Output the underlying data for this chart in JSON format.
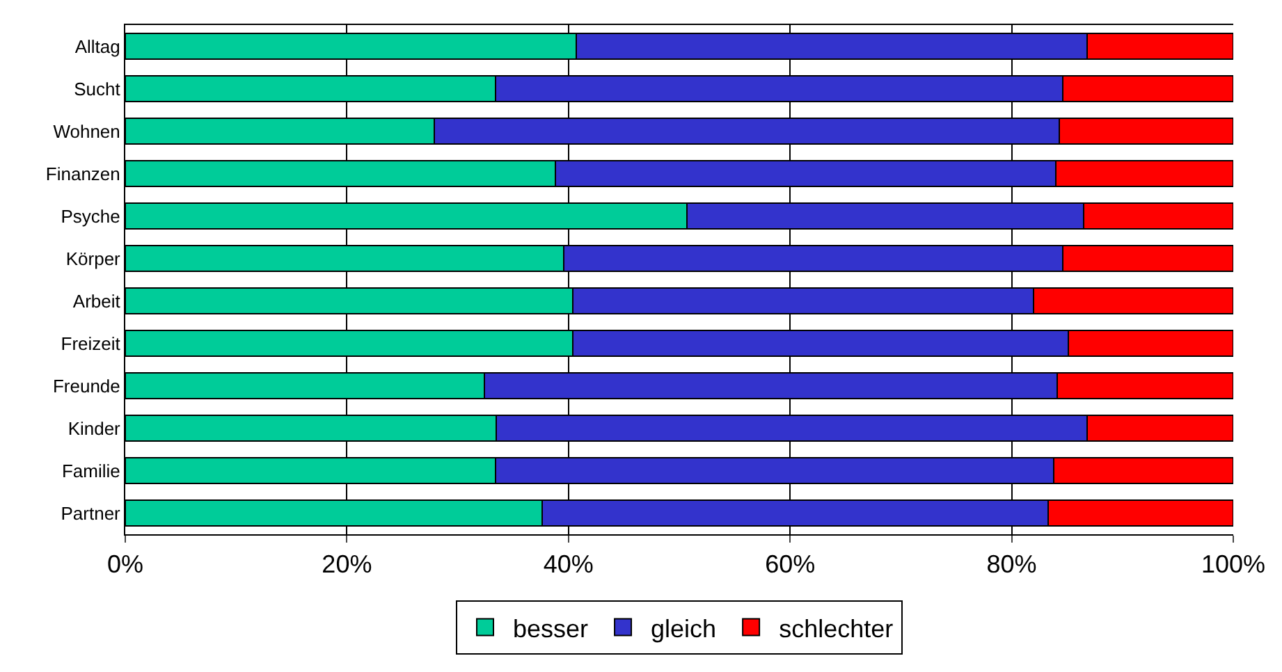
{
  "chart_data": {
    "type": "bar",
    "orientation": "horizontal",
    "stacked": true,
    "categories": [
      "Alltag",
      "Sucht",
      "Wohnen",
      "Finanzen",
      "Psyche",
      "Körper",
      "Arbeit",
      "Freizeit",
      "Freunde",
      "Kinder",
      "Familie",
      "Partner"
    ],
    "series": [
      {
        "name": "besser",
        "color": "#00cc99",
        "values": [
          40.7,
          33.4,
          27.9,
          38.8,
          50.7,
          39.6,
          40.4,
          40.4,
          32.4,
          33.5,
          33.4,
          37.6
        ]
      },
      {
        "name": "gleich",
        "color": "#3333cc",
        "values": [
          46.1,
          51.2,
          56.4,
          45.2,
          35.8,
          45.0,
          41.6,
          44.7,
          51.7,
          53.3,
          50.4,
          45.7
        ]
      },
      {
        "name": "schlechter",
        "color": "#ff0000",
        "values": [
          13.2,
          15.4,
          15.7,
          16.0,
          13.5,
          15.4,
          18.0,
          14.9,
          15.9,
          13.2,
          16.2,
          16.7
        ]
      }
    ],
    "xlim": [
      0,
      100
    ],
    "xticks": [
      {
        "value": 0,
        "label": "0%"
      },
      {
        "value": 20,
        "label": "20%"
      },
      {
        "value": 40,
        "label": "40%"
      },
      {
        "value": 60,
        "label": "60%"
      },
      {
        "value": 80,
        "label": "80%"
      },
      {
        "value": 100,
        "label": "100%"
      }
    ],
    "grid": "x",
    "legend": "bottom"
  }
}
